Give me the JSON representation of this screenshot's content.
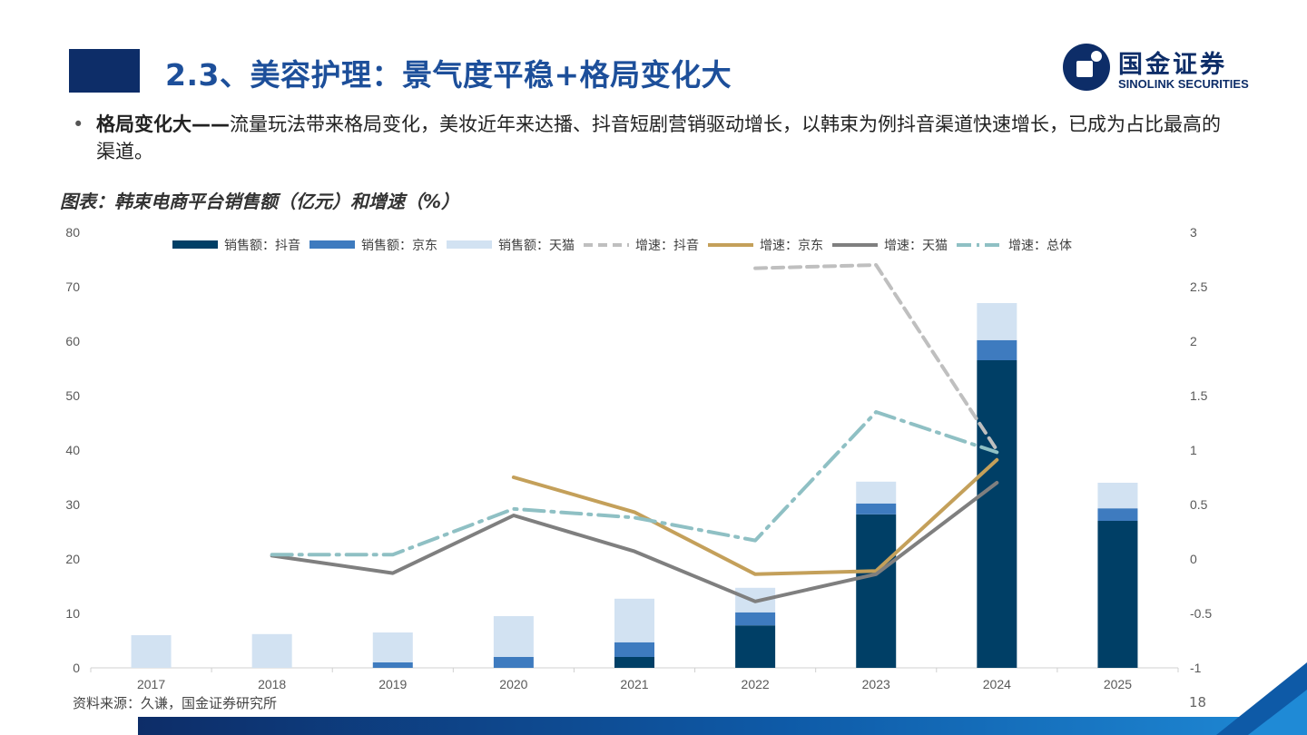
{
  "header": {
    "title": "2.3、美容护理：景气度平稳+格局变化大",
    "logo_cn": "国金证券",
    "logo_en": "SINOLINK SECURITIES"
  },
  "bullet": {
    "bold": "格局变化大——",
    "text": "流量玩法带来格局变化，美妆近年来达播、抖音短剧营销驱动增长，以韩束为例抖音渠道快速增长，已成为占比最高的渠道。"
  },
  "chart_title": "图表：韩束电商平台销售额（亿元）和增速（%）",
  "source": "资料来源：久谦，国金证券研究所",
  "page_number": "18",
  "colors": {
    "douyin_bar": "#003f66",
    "jd_bar": "#3e7bbf",
    "tmall_bar": "#d2e2f2",
    "douyin_line": "#bfbfbf",
    "jd_line": "#c4a05a",
    "tmall_line": "#7f7f7f",
    "total_line": "#8fc0c4",
    "title_block": "#0d2d68",
    "title_text": "#1d4f9a"
  },
  "chart_data": {
    "type": "bar",
    "categories": [
      "2017",
      "2018",
      "2019",
      "2020",
      "2021",
      "2022",
      "2023",
      "2024",
      "2025"
    ],
    "bars": [
      {
        "name": "销售额：抖音",
        "values": [
          0,
          0,
          0,
          0,
          2,
          7.8,
          28.2,
          56.5,
          27
        ]
      },
      {
        "name": "销售额：京东",
        "values": [
          0,
          0,
          1,
          2,
          2.7,
          2.4,
          2,
          3.7,
          2.3
        ]
      },
      {
        "name": "销售额：天猫",
        "values": [
          6,
          6.2,
          5.5,
          7.5,
          8,
          4.5,
          4,
          6.8,
          4.7
        ]
      }
    ],
    "lines": [
      {
        "name": "增速：抖音",
        "values": [
          null,
          null,
          null,
          null,
          null,
          2.67,
          2.7,
          1.0,
          null
        ]
      },
      {
        "name": "增速：京东",
        "values": [
          null,
          null,
          null,
          0.75,
          0.43,
          -0.14,
          -0.11,
          0.91,
          null
        ]
      },
      {
        "name": "增速：天猫",
        "values": [
          null,
          0.03,
          -0.13,
          0.4,
          0.07,
          -0.39,
          -0.14,
          0.7,
          null
        ]
      },
      {
        "name": "增速：总体",
        "values": [
          null,
          0.04,
          0.04,
          0.46,
          0.38,
          0.17,
          1.35,
          0.98,
          null
        ]
      }
    ],
    "ylim_left": [
      0,
      80
    ],
    "yticks_left": [
      "0",
      "10",
      "20",
      "30",
      "40",
      "50",
      "60",
      "70",
      "80"
    ],
    "ylim_right": [
      -1,
      3
    ],
    "yticks_right": [
      "-1",
      "-0.5",
      "0",
      "0.5",
      "1",
      "1.5",
      "2",
      "2.5",
      "3"
    ],
    "legend_position": "top",
    "grid": false
  }
}
